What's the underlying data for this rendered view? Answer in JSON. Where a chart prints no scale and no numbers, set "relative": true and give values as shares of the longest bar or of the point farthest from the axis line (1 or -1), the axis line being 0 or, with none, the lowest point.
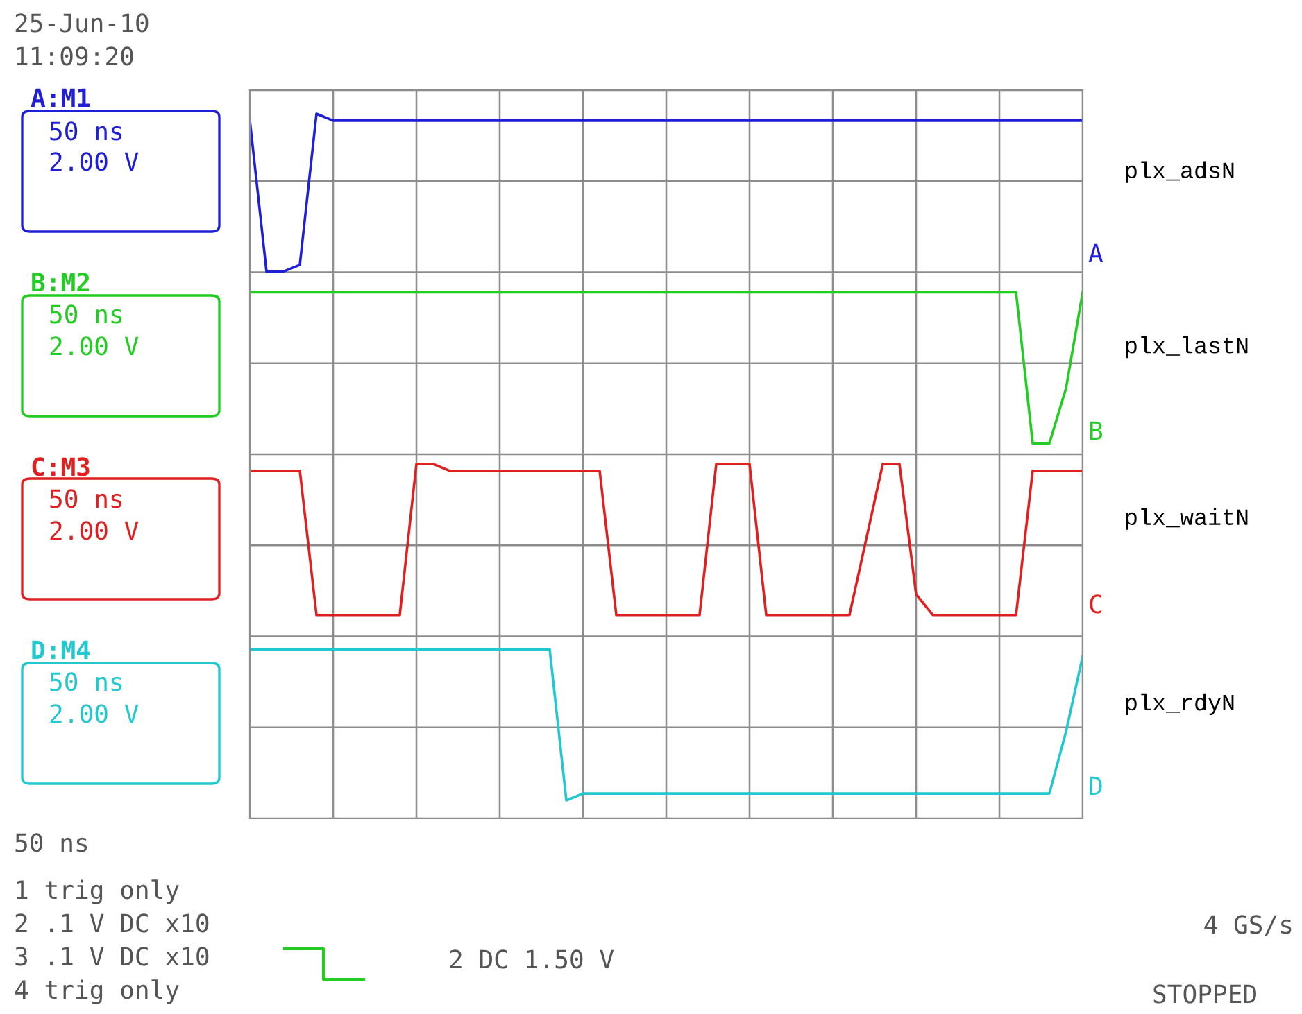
{
  "chart_data": {
    "type": "line",
    "relative": true,
    "grid": true,
    "categories": [
      null,
      null,
      null,
      null,
      null,
      null,
      null,
      null,
      null,
      null,
      null,
      null,
      null,
      null,
      null,
      null,
      null,
      null,
      null,
      null,
      null,
      null,
      null,
      null,
      null,
      null,
      null,
      null,
      null,
      null,
      null,
      null,
      null,
      null,
      null,
      null,
      null,
      null,
      null,
      null,
      null,
      null,
      null,
      null,
      null,
      null,
      null,
      null,
      null,
      null,
      null
    ],
    "series": [
      {
        "name": "plx_adsN",
        "color": "#1f1fd6",
        "values": [
          0.99,
          0.77,
          0.77,
          0.78,
          1.0,
          0.99,
          0.99,
          0.99,
          0.99,
          0.99,
          0.99,
          0.99,
          0.99,
          0.99,
          0.99,
          0.99,
          0.99,
          0.99,
          0.99,
          0.99,
          0.99,
          0.99,
          0.99,
          0.99,
          0.99,
          0.99,
          0.99,
          0.99,
          0.99,
          0.99,
          0.99,
          0.99,
          0.99,
          0.99,
          0.99,
          0.99,
          0.99,
          0.99,
          0.99,
          0.99,
          0.99,
          0.99,
          0.99,
          0.99,
          0.99,
          0.99,
          0.99,
          0.99,
          0.99,
          0.99,
          0.99
        ]
      },
      {
        "name": "plx_lastN",
        "color": "#22cc22",
        "values": [
          0.74,
          0.74,
          0.74,
          0.74,
          0.74,
          0.74,
          0.74,
          0.74,
          0.74,
          0.74,
          0.74,
          0.74,
          0.74,
          0.74,
          0.74,
          0.74,
          0.74,
          0.74,
          0.74,
          0.74,
          0.74,
          0.74,
          0.74,
          0.74,
          0.74,
          0.74,
          0.74,
          0.74,
          0.74,
          0.74,
          0.74,
          0.74,
          0.74,
          0.74,
          0.74,
          0.74,
          0.74,
          0.74,
          0.74,
          0.74,
          0.74,
          0.74,
          0.74,
          0.74,
          0.74,
          0.74,
          0.74,
          0.52,
          0.52,
          0.6,
          0.74
        ]
      },
      {
        "name": "plx_waitN",
        "color": "#e02020",
        "values": [
          0.48,
          0.48,
          0.48,
          0.48,
          0.27,
          0.27,
          0.27,
          0.27,
          0.27,
          0.27,
          0.49,
          0.49,
          0.48,
          0.48,
          0.48,
          0.48,
          0.48,
          0.48,
          0.48,
          0.48,
          0.48,
          0.48,
          0.27,
          0.27,
          0.27,
          0.27,
          0.27,
          0.27,
          0.49,
          0.49,
          0.49,
          0.27,
          0.27,
          0.27,
          0.27,
          0.27,
          0.27,
          0.38,
          0.49,
          0.49,
          0.3,
          0.27,
          0.27,
          0.27,
          0.27,
          0.27,
          0.27,
          0.48,
          0.48,
          0.48,
          0.48
        ]
      },
      {
        "name": "plx_rdyN",
        "color": "#22c8d0",
        "values": [
          0.22,
          0.22,
          0.22,
          0.22,
          0.22,
          0.22,
          0.22,
          0.22,
          0.22,
          0.22,
          0.22,
          0.22,
          0.22,
          0.22,
          0.22,
          0.22,
          0.22,
          0.22,
          0.22,
          0.0,
          0.01,
          0.01,
          0.01,
          0.01,
          0.01,
          0.01,
          0.01,
          0.01,
          0.01,
          0.01,
          0.01,
          0.01,
          0.01,
          0.01,
          0.01,
          0.01,
          0.01,
          0.01,
          0.01,
          0.01,
          0.01,
          0.01,
          0.01,
          0.01,
          0.01,
          0.01,
          0.01,
          0.01,
          0.01,
          0.1,
          0.21
        ]
      }
    ],
    "annotations": [
      "25-Jun-10",
      "11:09:20",
      "A:M1",
      "50 ns",
      "2.00 V",
      "B:M2",
      "50 ns",
      "2.00 V",
      "C:M3",
      "50 ns",
      "2.00 V",
      "D:M4",
      "50 ns",
      "2.00 V",
      "A",
      "B",
      "C",
      "D",
      "50 ns",
      "1 trig only",
      "2 .1 V DC x10",
      "3 .1 V DC x10",
      "4 trig only",
      "2 DC 1.50 V",
      "4 GS/s",
      "STOPPED"
    ]
  }
}
